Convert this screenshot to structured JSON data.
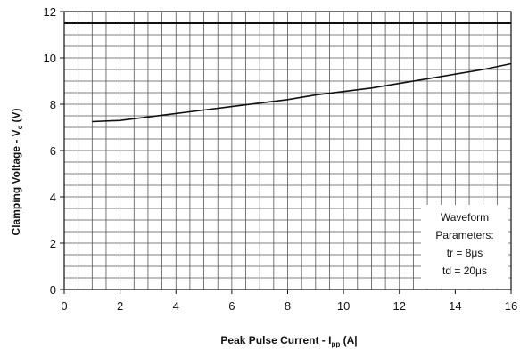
{
  "chart_data": {
    "type": "line",
    "title": "",
    "xlabel": "Peak Pulse Current - I",
    "xlabel_sub": "pp",
    "xlabel_unit": " (A|",
    "ylabel": "Clamping Voltage - V",
    "ylabel_sub": "c",
    "ylabel_unit": " (V)",
    "xlim": [
      0,
      16
    ],
    "ylim": [
      0,
      12
    ],
    "xticks": [
      "0",
      "2",
      "4",
      "6",
      "8",
      "10",
      "12",
      "14",
      "16"
    ],
    "yticks": [
      "0",
      "2",
      "4",
      "6",
      "8",
      "10",
      "12"
    ],
    "grid": true,
    "reference_line": 11.5,
    "series": [
      {
        "x": [
          1,
          2,
          3,
          4,
          5,
          6,
          7,
          8,
          9,
          10,
          11,
          12,
          13,
          14,
          15,
          16
        ],
        "y": [
          7.25,
          7.3,
          7.45,
          7.6,
          7.75,
          7.9,
          8.05,
          8.2,
          8.4,
          8.55,
          8.7,
          8.9,
          9.1,
          9.3,
          9.5,
          9.75
        ]
      }
    ],
    "annotation": {
      "lines": [
        "Waveform",
        "Parameters:",
        "tr = 8μs",
        "td = 20μs"
      ],
      "placement": "bottom-right"
    }
  }
}
